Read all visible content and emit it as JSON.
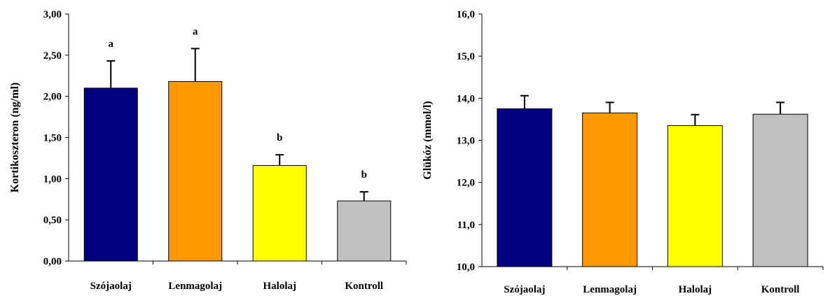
{
  "chart_data": [
    {
      "type": "bar",
      "ylabel": "Kortikoszteron (ng/ml)",
      "categories": [
        "Szójaolaj",
        "Lenmagolaj",
        "Halolaj",
        "Kontroll"
      ],
      "values": [
        2.1,
        2.18,
        1.16,
        0.73
      ],
      "errors": [
        0.33,
        0.4,
        0.13,
        0.11
      ],
      "significance": [
        "a",
        "a",
        "b",
        "b"
      ],
      "colors": [
        "#000080",
        "#FF9900",
        "#FFFF00",
        "#C0C0C0"
      ],
      "ylim": [
        0,
        3
      ],
      "yticks": [
        0,
        0.5,
        1,
        1.5,
        2,
        2.5,
        3
      ],
      "ytick_labels": [
        "0,00",
        "0,50",
        "1,00",
        "1,50",
        "2,00",
        "2,50",
        "3,00"
      ],
      "grid": false
    },
    {
      "type": "bar",
      "ylabel": "Glükóz (mmol/l)",
      "categories": [
        "Szójaolaj",
        "Lenmagolaj",
        "Halolaj",
        "Kontroll"
      ],
      "values": [
        13.75,
        13.65,
        13.35,
        13.62
      ],
      "errors": [
        0.31,
        0.25,
        0.26,
        0.28
      ],
      "significance": [
        "",
        "",
        "",
        ""
      ],
      "colors": [
        "#000080",
        "#FF9900",
        "#FFFF00",
        "#C0C0C0"
      ],
      "ylim": [
        10,
        16
      ],
      "yticks": [
        10,
        11,
        12,
        13,
        14,
        15,
        16
      ],
      "ytick_labels": [
        "10,0",
        "11,0",
        "12,0",
        "13,0",
        "14,0",
        "15,0",
        "16,0"
      ],
      "grid": false
    }
  ]
}
